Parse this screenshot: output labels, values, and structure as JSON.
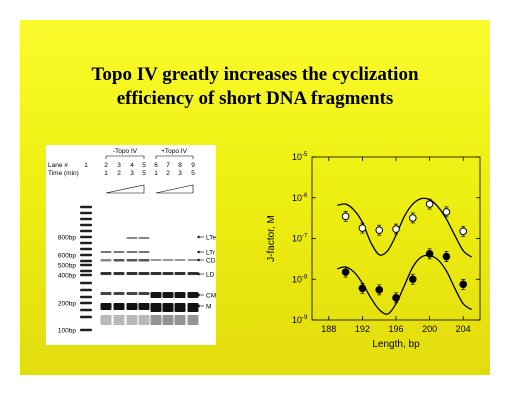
{
  "slide": {
    "title_line1": "Topo IV greatly increases the cyclization",
    "title_line2": "efficiency of short DNA fragments",
    "background_color": "#eef012"
  },
  "gel": {
    "group_minus": "-Topo IV",
    "group_plus": "+Topo IV",
    "lane_header": "Lane #",
    "time_header": "Time (min)",
    "lanes": [
      "1",
      "2",
      "3",
      "4",
      "5",
      "6",
      "7",
      "8",
      "9"
    ],
    "times": [
      "1",
      "2",
      "3",
      "5",
      "1",
      "2",
      "3",
      "5"
    ],
    "size_markers": [
      {
        "label": "800bp"
      },
      {
        "label": "600bp"
      },
      {
        "label": "500bp"
      },
      {
        "label": "400bp"
      },
      {
        "label": "200bp"
      },
      {
        "label": "100bp"
      }
    ],
    "band_labels": [
      {
        "label": "LTe"
      },
      {
        "label": "LTr"
      },
      {
        "label": "CD"
      },
      {
        "label": "LD"
      },
      {
        "label": "CM"
      },
      {
        "label": "M"
      }
    ]
  },
  "chart_data": {
    "type": "scatter",
    "xlabel": "Length, bp",
    "ylabel": "J-factor, M",
    "xlim": [
      186,
      206
    ],
    "ylim_log10": [
      -9,
      -5
    ],
    "yscale": "log",
    "x_ticks": [
      188,
      192,
      196,
      200,
      204
    ],
    "y_tick_exponents": [
      -9,
      -8,
      -7,
      -6,
      -5
    ],
    "y_tick_labels": [
      "10",
      "10",
      "10",
      "10",
      "10"
    ],
    "y_tick_superscripts": [
      "-9",
      "-8",
      "-7",
      "-6",
      "-5"
    ],
    "grid": false,
    "series": [
      {
        "marker": "open-circle",
        "x": [
          190,
          192,
          194,
          196,
          198,
          200,
          202,
          204
        ],
        "y": [
          3.5e-07,
          1.8e-07,
          1.6e-07,
          1.7e-07,
          3.2e-07,
          7e-07,
          4.5e-07,
          1.5e-07
        ]
      },
      {
        "marker": "filled-circle",
        "x": [
          190,
          192,
          194,
          196,
          198,
          200,
          202,
          204
        ],
        "y": [
          1.5e-08,
          6e-09,
          5.5e-09,
          3.5e-09,
          1e-08,
          4.2e-08,
          3.6e-08,
          7.5e-09
        ]
      }
    ],
    "fits": [
      {
        "x": [
          189,
          190,
          191,
          192,
          193,
          194,
          195,
          196,
          197,
          198,
          199,
          200,
          201,
          202,
          203,
          204,
          205
        ],
        "y": [
          6.5e-07,
          7e-07,
          5e-07,
          2.5e-07,
          8e-08,
          4e-08,
          5e-08,
          1.2e-07,
          3.5e-07,
          7e-07,
          9.5e-07,
          9e-07,
          6e-07,
          3e-07,
          1.2e-07,
          5e-08,
          3.5e-08
        ]
      },
      {
        "x": [
          189,
          190,
          191,
          192,
          193,
          194,
          195,
          196,
          197,
          198,
          199,
          200,
          201,
          202,
          203,
          204,
          205
        ],
        "y": [
          1.8e-08,
          2e-08,
          1.5e-08,
          8e-09,
          3.5e-09,
          1.8e-09,
          1.4e-09,
          2.5e-09,
          7e-09,
          2e-08,
          3.5e-08,
          3.8e-08,
          3e-08,
          1.6e-08,
          6e-09,
          2.5e-09,
          1.8e-09
        ]
      }
    ]
  }
}
